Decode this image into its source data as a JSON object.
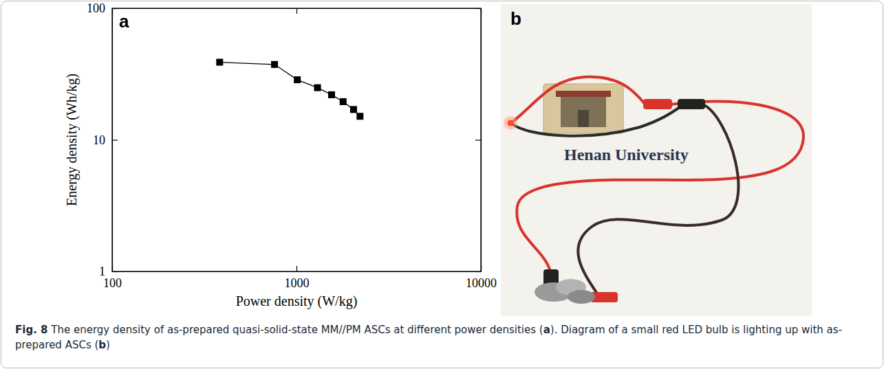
{
  "chart_data": {
    "type": "line",
    "marker": "square",
    "line_style": "solid",
    "color": "#000000",
    "log": true,
    "panel_label": "a",
    "x_label": "Power density (W/kg)",
    "y_label": "Energy density (Wh/kg)",
    "x": [
      383,
      760,
      1010,
      1300,
      1550,
      1790,
      2040,
      2210
    ],
    "values": [
      38.9,
      37.4,
      28.6,
      24.9,
      22.0,
      19.5,
      17.0,
      15.1
    ],
    "xlim": [
      100,
      10000
    ],
    "xticks": [
      100,
      1000,
      10000
    ],
    "ylim": [
      1,
      100
    ],
    "yticks": [
      1,
      10,
      100
    ]
  },
  "photo": {
    "label": "b",
    "text": "Henan University"
  },
  "caption": [
    {
      "text": "Fig. 8",
      "bold": true
    },
    {
      "text": " The energy density of as-prepared quasi-solid-state MM//PM ASCs at different power densities ("
    },
    {
      "text": "a",
      "bold": true
    },
    {
      "text": "). Diagram of a small red LED bulb is lighting up with as-prepared ASCs ("
    },
    {
      "text": "b",
      "bold": true
    },
    {
      "text": ")"
    }
  ]
}
